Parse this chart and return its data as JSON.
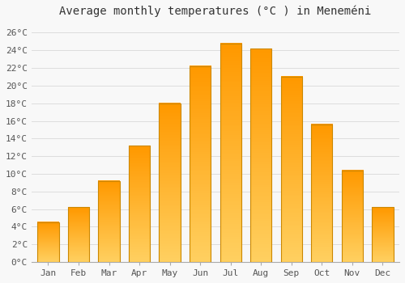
{
  "title": "Average monthly temperatures (°C ) in Meneméni",
  "months": [
    "Jan",
    "Feb",
    "Mar",
    "Apr",
    "May",
    "Jun",
    "Jul",
    "Aug",
    "Sep",
    "Oct",
    "Nov",
    "Dec"
  ],
  "values": [
    4.5,
    6.2,
    9.2,
    13.2,
    18.0,
    22.2,
    24.8,
    24.2,
    21.0,
    15.6,
    10.4,
    6.2
  ],
  "bar_face_color": "#FFAA00",
  "bar_edge_color": "#CC8800",
  "ylim": [
    0,
    27
  ],
  "yticks": [
    0,
    2,
    4,
    6,
    8,
    10,
    12,
    14,
    16,
    18,
    20,
    22,
    24,
    26
  ],
  "background_color": "#f8f8f8",
  "plot_bg_color": "#f8f8f8",
  "grid_color": "#dddddd",
  "title_fontsize": 10,
  "tick_fontsize": 8,
  "bar_width": 0.7
}
